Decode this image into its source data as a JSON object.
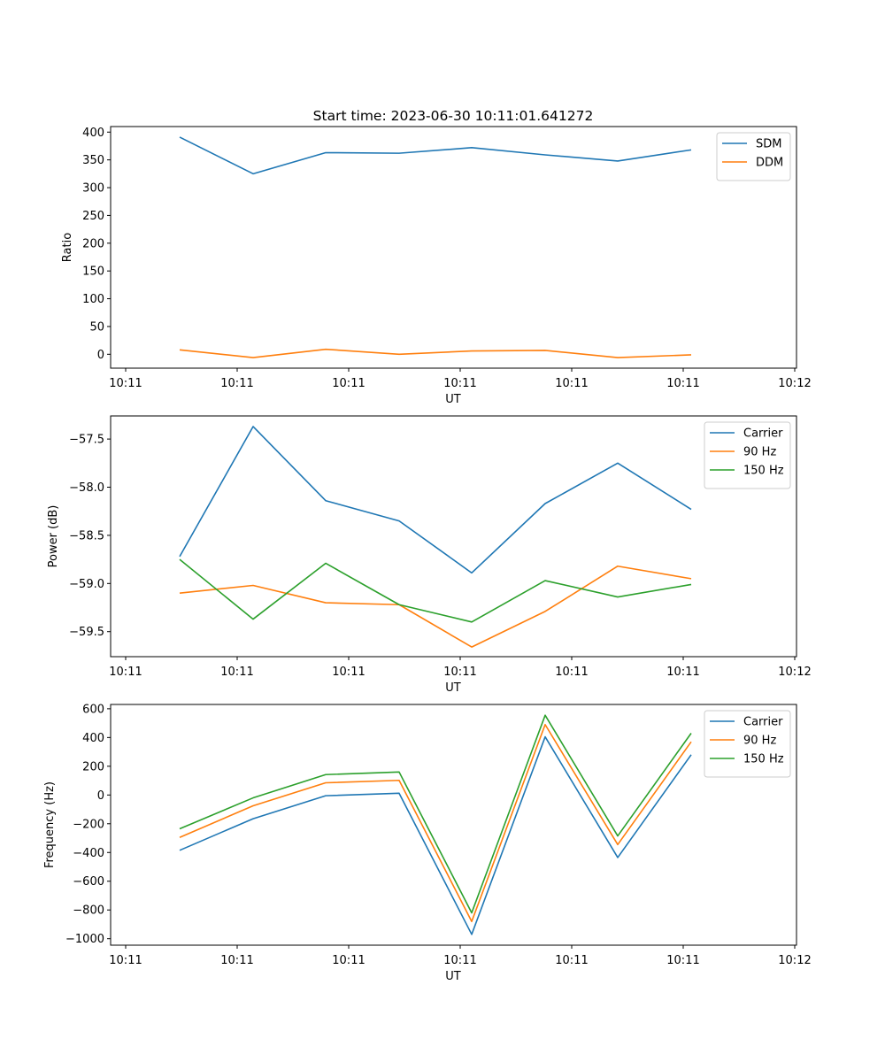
{
  "title": "Start time: 2023-06-30 10:11:01.641272",
  "colors": {
    "blue": "#1f77b4",
    "orange": "#ff7f0e",
    "green": "#2ca02c"
  },
  "chart_data": [
    {
      "type": "line",
      "xlabel": "UT",
      "ylabel": "Ratio",
      "x_tick_labels": [
        "10:11",
        "10:11",
        "10:11",
        "10:11",
        "10:11",
        "10:11",
        "10:12"
      ],
      "ylim": [
        -25,
        410
      ],
      "yticks": [
        0,
        50,
        100,
        150,
        200,
        250,
        300,
        350,
        400
      ],
      "ytick_labels": [
        "0",
        "50",
        "100",
        "150",
        "200",
        "250",
        "300",
        "350",
        "400"
      ],
      "legend_position": "top-right",
      "series": [
        {
          "name": "SDM",
          "color": "#1f77b4",
          "values": [
            391,
            325,
            363,
            362,
            372,
            359,
            348,
            368
          ]
        },
        {
          "name": "DDM",
          "color": "#ff7f0e",
          "values": [
            8,
            -6,
            9,
            0,
            6,
            7,
            -6,
            -1
          ]
        }
      ]
    },
    {
      "type": "line",
      "xlabel": "UT",
      "ylabel": "Power (dB)",
      "x_tick_labels": [
        "10:11",
        "10:11",
        "10:11",
        "10:11",
        "10:11",
        "10:11",
        "10:12"
      ],
      "ylim": [
        -59.76,
        -57.26
      ],
      "yticks": [
        -59.5,
        -59.0,
        -58.5,
        -58.0,
        -57.5
      ],
      "ytick_labels": [
        "−59.5",
        "−59.0",
        "−58.5",
        "−58.0",
        "−57.5"
      ],
      "legend_position": "top-right",
      "series": [
        {
          "name": "Carrier",
          "color": "#1f77b4",
          "values": [
            -58.72,
            -57.37,
            -58.14,
            -58.35,
            -58.89,
            -58.17,
            -57.75,
            -58.23
          ]
        },
        {
          "name": "90 Hz",
          "color": "#ff7f0e",
          "values": [
            -59.1,
            -59.02,
            -59.2,
            -59.22,
            -59.66,
            -59.29,
            -58.82,
            -58.95
          ]
        },
        {
          "name": "150 Hz",
          "color": "#2ca02c",
          "values": [
            -58.75,
            -59.37,
            -58.79,
            -59.22,
            -59.4,
            -58.97,
            -59.14,
            -59.01
          ]
        }
      ]
    },
    {
      "type": "line",
      "xlabel": "UT",
      "ylabel": "Frequency (Hz)",
      "x_tick_labels": [
        "10:11",
        "10:11",
        "10:11",
        "10:11",
        "10:11",
        "10:11",
        "10:12"
      ],
      "ylim": [
        -1045,
        630
      ],
      "yticks": [
        -1000,
        -800,
        -600,
        -400,
        -200,
        0,
        200,
        400,
        600
      ],
      "ytick_labels": [
        "−1000",
        "−800",
        "−600",
        "−400",
        "−200",
        "0",
        "200",
        "400",
        "600"
      ],
      "legend_position": "top-right",
      "series": [
        {
          "name": "Carrier",
          "color": "#1f77b4",
          "values": [
            -385,
            -165,
            -5,
            12,
            -970,
            405,
            -435,
            280
          ]
        },
        {
          "name": "90 Hz",
          "color": "#ff7f0e",
          "values": [
            -295,
            -75,
            85,
            102,
            -880,
            490,
            -345,
            370
          ]
        },
        {
          "name": "150 Hz",
          "color": "#2ca02c",
          "values": [
            -235,
            -20,
            142,
            160,
            -820,
            555,
            -285,
            430
          ]
        }
      ]
    }
  ]
}
